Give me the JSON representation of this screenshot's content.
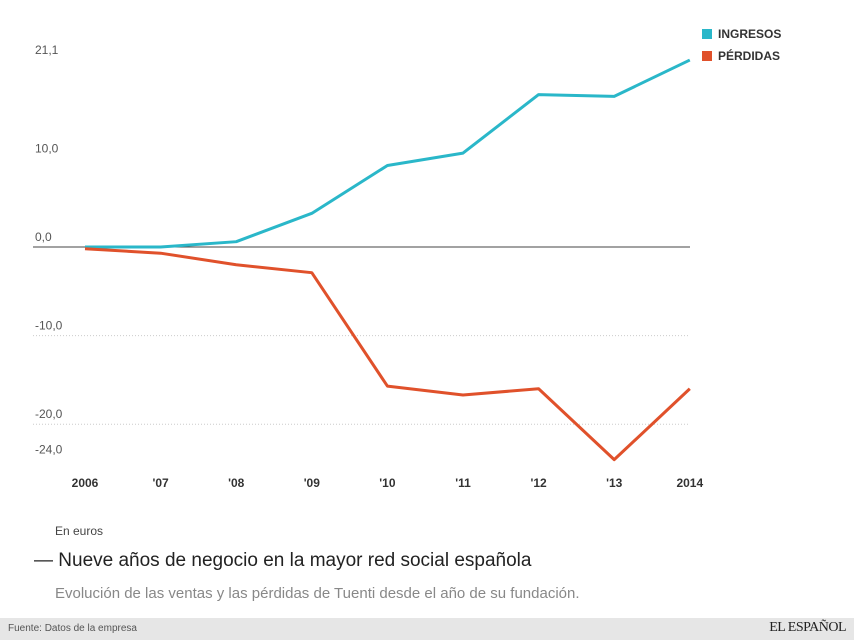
{
  "chart_data": {
    "type": "line",
    "categories": [
      "2006",
      "'07",
      "'08",
      "'09",
      "'10",
      "'11",
      "'12",
      "'13",
      "2014"
    ],
    "series": [
      {
        "name": "INGRESOS",
        "color": "#2ab7c9",
        "values": [
          0.0,
          0.0,
          0.6,
          3.8,
          9.2,
          10.6,
          17.2,
          17.0,
          21.1
        ]
      },
      {
        "name": "PÉRDIDAS",
        "color": "#e0512b",
        "values": [
          -0.2,
          -0.7,
          -2.0,
          -2.9,
          -15.7,
          -16.7,
          -16.0,
          -24.0,
          -16.0
        ]
      }
    ],
    "yticks": [
      21.1,
      10.0,
      0.0,
      -10.0,
      -20.0,
      -24.0
    ],
    "ytick_labels": [
      "21,1",
      "10,0",
      "0,0",
      "-10,0",
      "-20,0",
      "-24,0"
    ],
    "ylim": [
      -24.0,
      21.1
    ],
    "grid": "dotted horizontal at -10 and -20; solid zero line",
    "legend": "top-right",
    "title": "Nueve años de negocio en la mayor red social española",
    "subtitle": "Evolución de las ventas y las pérdidas de Tuenti desde el año de su fundación.",
    "unit": "En euros"
  },
  "footer": {
    "source": "Fuente: Datos de la empresa",
    "logo": "EL ESPAÑOL"
  }
}
